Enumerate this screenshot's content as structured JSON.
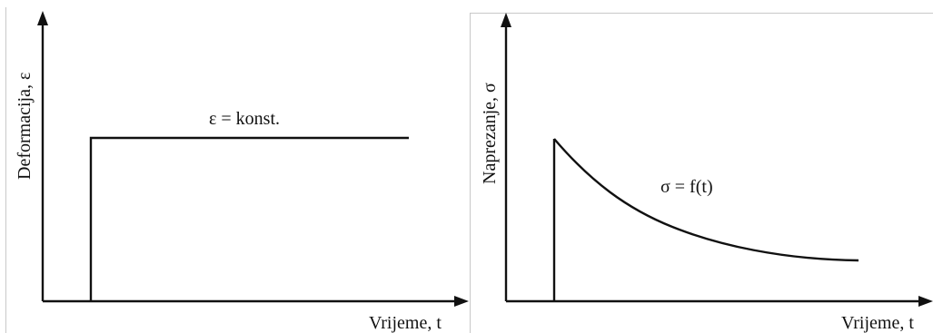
{
  "left_panel": {
    "y_axis_label": "Deformacija, ε",
    "x_axis_label": "Vrijeme, t",
    "curve_label": "ε = konst."
  },
  "right_panel": {
    "y_axis_label": "Naprezanje, σ",
    "x_axis_label": "Vrijeme, t",
    "curve_label": "σ = f(t)"
  }
}
